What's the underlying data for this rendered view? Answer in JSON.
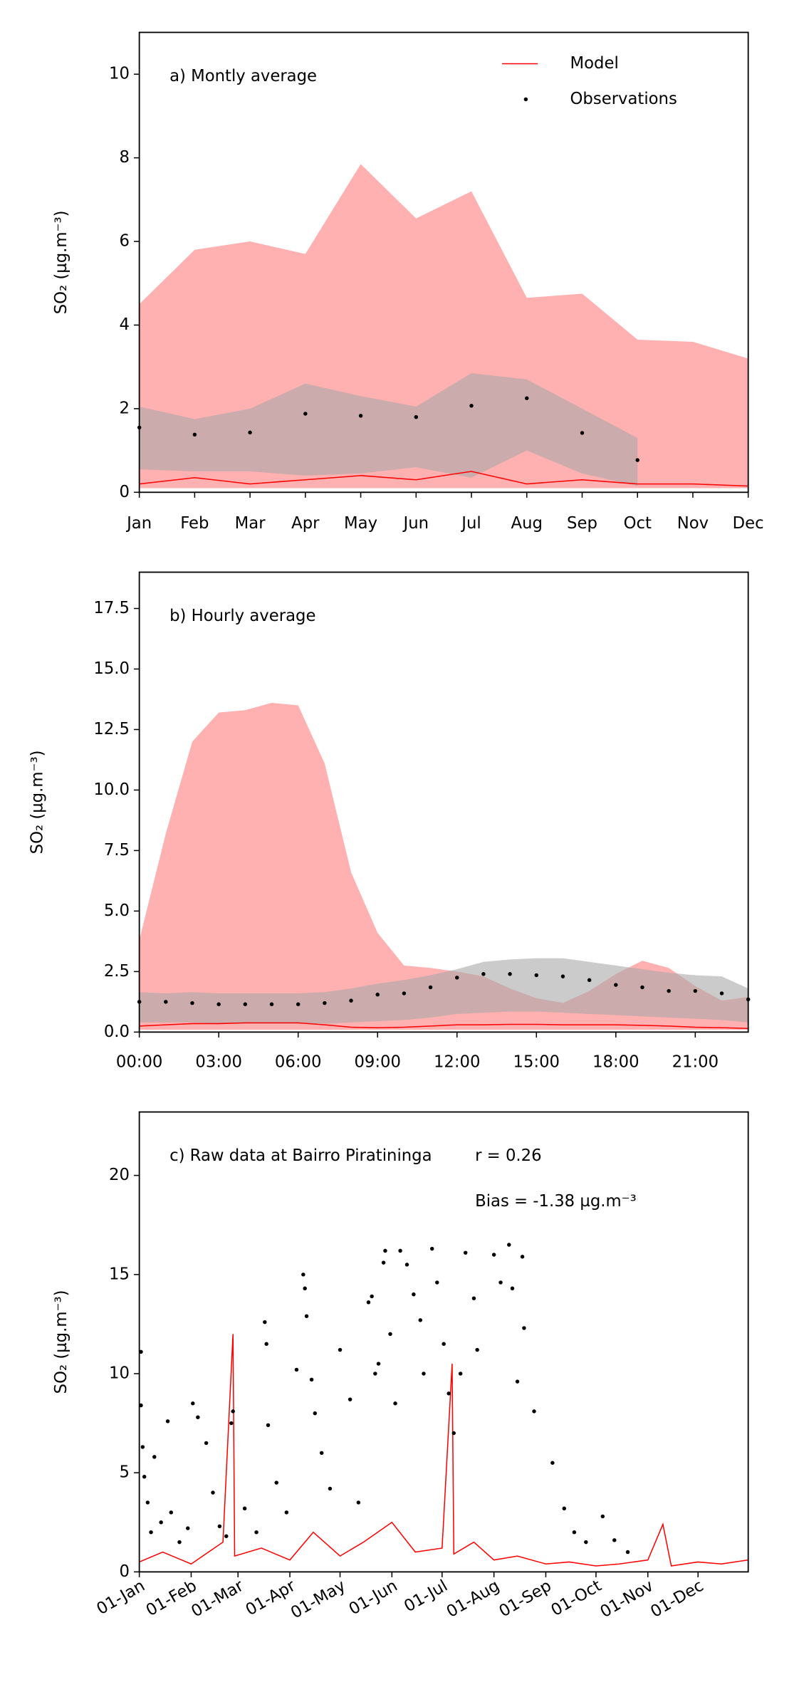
{
  "chart_data": [
    {
      "type": "line",
      "title": "a) Montly average",
      "ylabel": "SO₂ (µg.m⁻³)",
      "legend": "upper right",
      "categories": [
        "Jan",
        "Feb",
        "Mar",
        "Apr",
        "May",
        "Jun",
        "Jul",
        "Aug",
        "Sep",
        "Oct",
        "Nov",
        "Dec"
      ],
      "ylim": [
        0,
        11
      ],
      "yticks": [
        0,
        2,
        4,
        6,
        8,
        10
      ],
      "series": [
        {
          "name": "Model",
          "color": "#ff0000",
          "band_color": "#ffb0b0",
          "style": "line",
          "values": [
            0.2,
            0.35,
            0.2,
            0.3,
            0.4,
            0.3,
            0.5,
            0.2,
            0.3,
            0.2,
            0.2,
            0.15
          ],
          "lower": [
            0.1,
            0.1,
            0.1,
            0.1,
            0.1,
            0.1,
            0.1,
            0.1,
            0.1,
            0.1,
            0.1,
            0.1
          ],
          "upper": [
            4.5,
            5.8,
            6.0,
            5.7,
            7.85,
            6.55,
            7.2,
            4.65,
            4.75,
            3.65,
            3.6,
            3.2
          ]
        },
        {
          "name": "Observations",
          "color": "#000000",
          "band_color": "#a9a9a9",
          "style": "markers",
          "values": [
            1.55,
            1.38,
            1.43,
            1.88,
            1.83,
            1.8,
            2.07,
            2.25,
            1.42,
            0.77,
            null,
            null
          ],
          "lower": [
            0.55,
            0.5,
            0.5,
            0.4,
            0.45,
            0.6,
            0.35,
            1.0,
            0.45,
            0.15,
            null,
            null
          ],
          "upper": [
            2.05,
            1.75,
            2.0,
            2.6,
            2.3,
            2.05,
            2.85,
            2.7,
            2.0,
            1.3,
            null,
            null
          ]
        }
      ]
    },
    {
      "type": "line",
      "title": "b) Hourly average",
      "ylabel": "SO₂ (µg.m⁻³)",
      "x": [
        0,
        1,
        2,
        3,
        4,
        5,
        6,
        7,
        8,
        9,
        10,
        11,
        12,
        13,
        14,
        15,
        16,
        17,
        18,
        19,
        20,
        21,
        22,
        23
      ],
      "xlim": [
        0,
        23
      ],
      "xticks": [
        {
          "value": 0,
          "label": "00:00"
        },
        {
          "value": 3,
          "label": "03:00"
        },
        {
          "value": 6,
          "label": "06:00"
        },
        {
          "value": 9,
          "label": "09:00"
        },
        {
          "value": 12,
          "label": "12:00"
        },
        {
          "value": 15,
          "label": "15:00"
        },
        {
          "value": 18,
          "label": "18:00"
        },
        {
          "value": 21,
          "label": "21:00"
        }
      ],
      "ylim": [
        0,
        19
      ],
      "yticks": [
        {
          "value": 0,
          "label": "0.0"
        },
        2.5,
        {
          "value": 5,
          "label": "5.0"
        },
        7.5,
        {
          "value": 10,
          "label": "10.0"
        },
        12.5,
        {
          "value": 15,
          "label": "15.0"
        },
        17.5
      ],
      "series": [
        {
          "color": "#ff0000",
          "band_color": "#ffb0b0",
          "style": "line",
          "values": [
            0.25,
            0.3,
            0.35,
            0.35,
            0.38,
            0.38,
            0.38,
            0.3,
            0.2,
            0.18,
            0.2,
            0.25,
            0.3,
            0.3,
            0.32,
            0.32,
            0.3,
            0.3,
            0.3,
            0.28,
            0.25,
            0.2,
            0.18,
            0.15
          ],
          "lower": [
            0.1,
            0.1,
            0.1,
            0.1,
            0.1,
            0.1,
            0.1,
            0.1,
            0.1,
            0.1,
            0.1,
            0.1,
            0.1,
            0.1,
            0.1,
            0.1,
            0.1,
            0.1,
            0.1,
            0.1,
            0.1,
            0.1,
            0.1,
            0.1
          ],
          "upper": [
            3.8,
            8.2,
            12.0,
            13.2,
            13.3,
            13.6,
            13.5,
            11.1,
            6.6,
            4.1,
            2.75,
            2.65,
            2.5,
            2.3,
            1.8,
            1.4,
            1.2,
            1.7,
            2.4,
            2.95,
            2.65,
            1.9,
            1.3,
            1.45
          ]
        },
        {
          "color": "#000000",
          "band_color": "#a9a9a9",
          "style": "markers",
          "values": [
            1.25,
            1.25,
            1.2,
            1.15,
            1.15,
            1.15,
            1.15,
            1.2,
            1.3,
            1.55,
            1.6,
            1.85,
            2.25,
            2.4,
            2.4,
            2.35,
            2.3,
            2.15,
            1.95,
            1.85,
            1.7,
            1.7,
            1.6,
            1.35
          ],
          "lower": [
            0.4,
            0.4,
            0.4,
            0.35,
            0.35,
            0.35,
            0.35,
            0.35,
            0.4,
            0.45,
            0.5,
            0.6,
            0.75,
            0.8,
            0.85,
            0.85,
            0.8,
            0.75,
            0.7,
            0.65,
            0.6,
            0.55,
            0.5,
            0.4
          ],
          "upper": [
            1.65,
            1.6,
            1.65,
            1.6,
            1.6,
            1.6,
            1.6,
            1.65,
            1.8,
            2.0,
            2.15,
            2.35,
            2.6,
            2.9,
            3.0,
            3.05,
            3.05,
            2.9,
            2.75,
            2.6,
            2.45,
            2.35,
            2.3,
            1.8
          ]
        }
      ]
    },
    {
      "type": "line",
      "title": "c) Raw data at Bairro Piratininga",
      "ylabel": "SO₂ (µg.m⁻³)",
      "annotations": [
        "r = 0.26",
        "Bias = -1.38 µg.m⁻³"
      ],
      "xlim": [
        "01-Jan",
        "31-Dec"
      ],
      "xticks": [
        "01-Jan",
        "01-Feb",
        "01-Mar",
        "01-Apr",
        "01-May",
        "01-Jun",
        "01-Jul",
        "01-Aug",
        "01-Sep",
        "01-Oct",
        "01-Nov",
        "01-Dec"
      ],
      "ylim": [
        0,
        23.2
      ],
      "yticks": [
        0,
        5,
        10,
        15,
        20
      ],
      "series": [
        {
          "color": "#ff0000",
          "style": "line",
          "x": [
            "01-Jan",
            "15-Jan",
            "01-Feb",
            "20-Feb",
            "26-Feb",
            "27-Feb",
            "15-Mar",
            "01-Apr",
            "15-Apr",
            "01-May",
            "15-May",
            "01-Jun",
            "15-Jun",
            "01-Jul",
            "07-Jul",
            "08-Jul",
            "20-Jul",
            "01-Aug",
            "15-Aug",
            "01-Sep",
            "15-Sep",
            "01-Oct",
            "15-Oct",
            "01-Nov",
            "10-Nov",
            "15-Nov",
            "01-Dec",
            "15-Dec",
            "31-Dec"
          ],
          "values": [
            0.5,
            1.0,
            0.4,
            1.5,
            12.0,
            0.8,
            1.2,
            0.6,
            2.0,
            0.8,
            1.5,
            2.5,
            1.0,
            1.2,
            10.5,
            0.9,
            1.5,
            0.6,
            0.8,
            0.4,
            0.5,
            0.3,
            0.4,
            0.6,
            2.4,
            0.3,
            0.5,
            0.4,
            0.6
          ]
        },
        {
          "color": "#000000",
          "style": "markers",
          "x": [
            "02-Jan",
            "02-Jan",
            "03-Jan",
            "04-Jan",
            "06-Jan",
            "08-Jan",
            "10-Jan",
            "14-Jan",
            "18-Jan",
            "20-Jan",
            "25-Jan",
            "30-Jan",
            "02-Feb",
            "05-Feb",
            "10-Feb",
            "14-Feb",
            "18-Feb",
            "22-Feb",
            "25-Feb",
            "26-Feb",
            "05-Mar",
            "12-Mar",
            "17-Mar",
            "18-Mar",
            "19-Mar",
            "24-Mar",
            "30-Mar",
            "05-Apr",
            "09-Apr",
            "10-Apr",
            "11-Apr",
            "14-Apr",
            "16-Apr",
            "20-Apr",
            "25-Apr",
            "01-May",
            "07-May",
            "12-May",
            "18-May",
            "20-May",
            "22-May",
            "24-May",
            "27-May",
            "28-May",
            "31-May",
            "03-Jun",
            "06-Jun",
            "10-Jun",
            "14-Jun",
            "18-Jun",
            "20-Jun",
            "25-Jun",
            "28-Jun",
            "02-Jul",
            "05-Jul",
            "08-Jul",
            "12-Jul",
            "15-Jul",
            "20-Jul",
            "22-Jul",
            "01-Aug",
            "05-Aug",
            "10-Aug",
            "12-Aug",
            "15-Aug",
            "18-Aug",
            "19-Aug",
            "25-Aug",
            "05-Sep",
            "12-Sep",
            "18-Sep",
            "25-Sep",
            "05-Oct",
            "12-Oct",
            "20-Oct"
          ],
          "values": [
            11.1,
            8.4,
            6.3,
            4.8,
            3.5,
            2.0,
            5.8,
            2.5,
            7.6,
            3.0,
            1.5,
            2.2,
            8.5,
            7.8,
            6.5,
            4.0,
            2.3,
            1.8,
            7.5,
            8.1,
            3.2,
            2.0,
            12.6,
            11.5,
            7.4,
            4.5,
            3.0,
            10.2,
            15.0,
            14.3,
            12.9,
            9.7,
            8.0,
            6.0,
            4.2,
            11.2,
            8.7,
            3.5,
            13.6,
            13.9,
            10.0,
            10.5,
            15.6,
            16.2,
            12.0,
            8.5,
            16.2,
            15.5,
            14.0,
            12.7,
            10.0,
            16.3,
            14.6,
            11.5,
            9.0,
            7.0,
            10.0,
            16.1,
            13.8,
            11.2,
            16.0,
            14.6,
            16.5,
            14.3,
            9.6,
            15.9,
            12.3,
            8.1,
            5.5,
            3.2,
            2.0,
            1.5,
            2.8,
            1.6,
            1.0
          ]
        }
      ]
    }
  ]
}
